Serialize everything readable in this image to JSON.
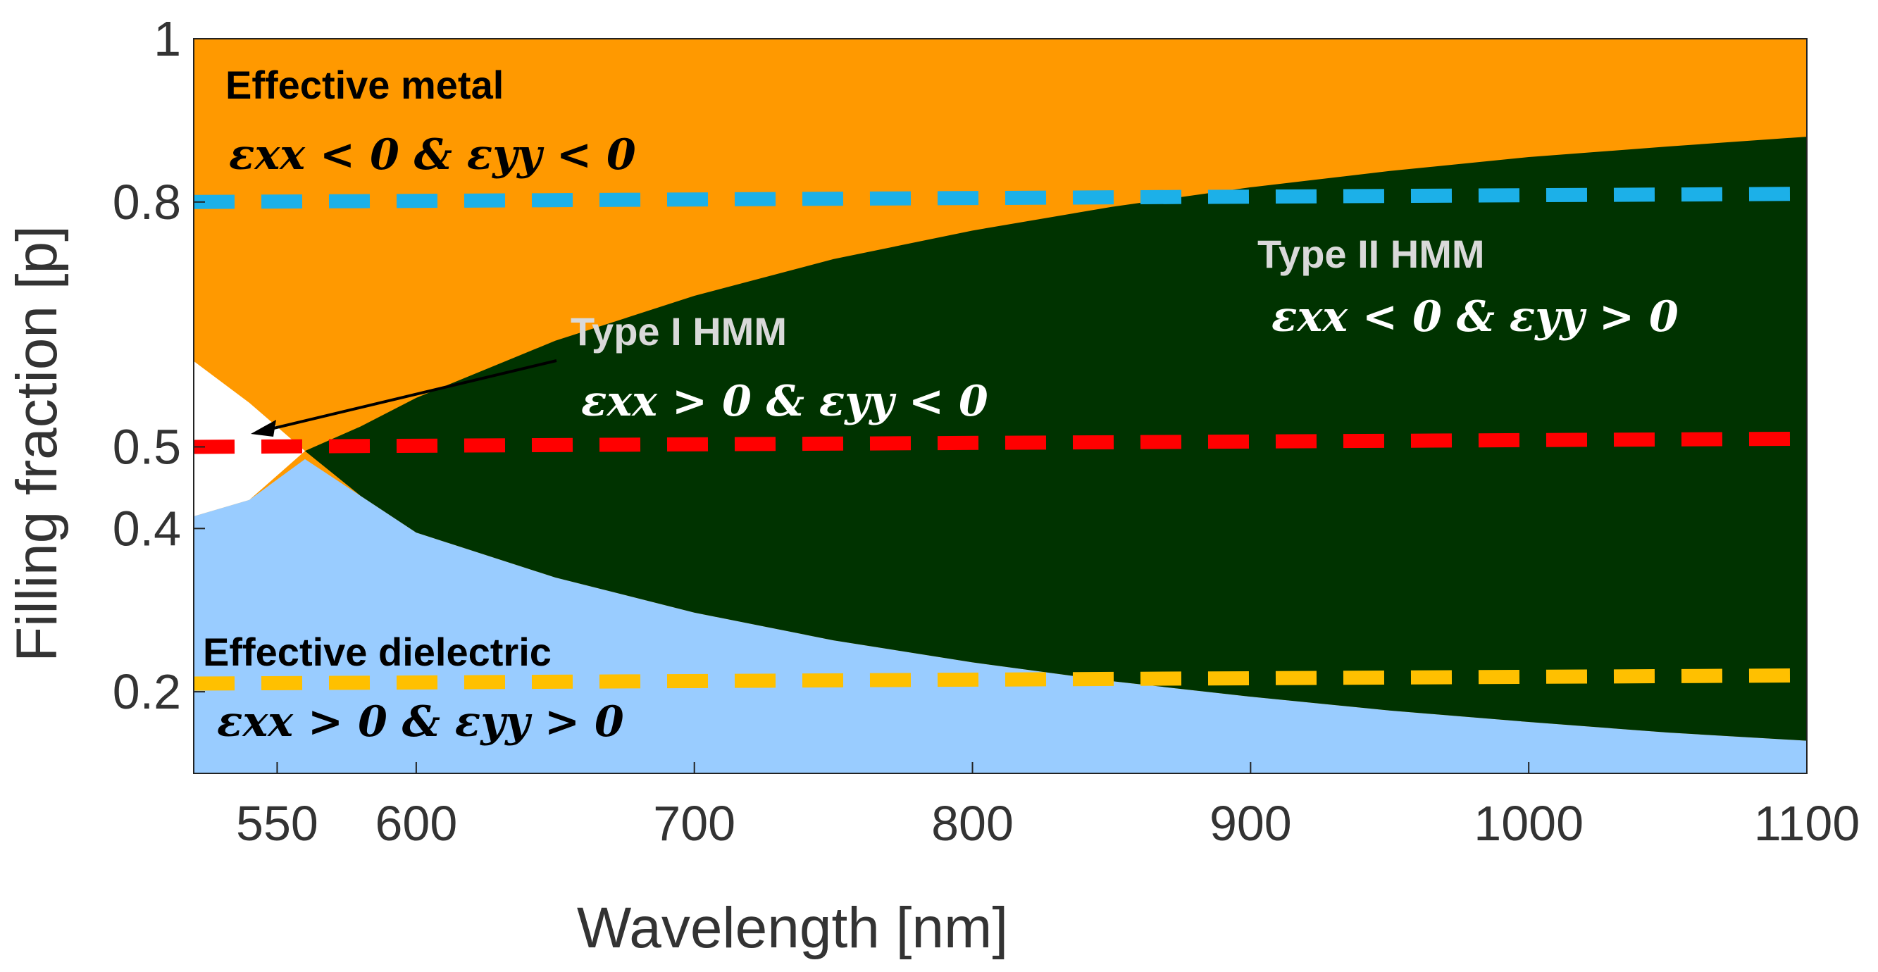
{
  "chart_data": {
    "type": "area",
    "title": "",
    "xlabel": "Wavelength [nm]",
    "ylabel": "Filling fraction [p]",
    "xlim": [
      520,
      1100
    ],
    "ylim": [
      0.1,
      1.0
    ],
    "x_ticks": [
      550,
      600,
      700,
      800,
      900,
      1000,
      1100
    ],
    "x_tick_labels": [
      "550",
      "600",
      "700",
      "800",
      "900",
      "1000",
      "1100"
    ],
    "y_ticks": [
      0.2,
      0.4,
      0.5,
      0.8,
      1.0
    ],
    "y_tick_labels": [
      "0.2",
      "0.4",
      "0.5",
      "0.8",
      "1"
    ],
    "boundaries": {
      "x": [
        520,
        540,
        560,
        580,
        600,
        650,
        700,
        750,
        800,
        850,
        900,
        950,
        1000,
        1050,
        1100
      ],
      "epsilon_xx_zero": [
        0.605,
        0.554,
        0.505,
        0.525,
        0.56,
        0.63,
        0.685,
        0.73,
        0.765,
        0.794,
        0.818,
        0.838,
        0.855,
        0.868,
        0.88
      ],
      "epsilon_yy_zero": [
        0.415,
        0.435,
        0.485,
        0.44,
        0.395,
        0.34,
        0.297,
        0.263,
        0.236,
        0.213,
        0.194,
        0.177,
        0.163,
        0.15,
        0.14
      ]
    },
    "regions": [
      {
        "name": "Effective metal",
        "condition": "εxx < 0 & εyy < 0",
        "color": "#FF9900"
      },
      {
        "name": "Type I HMM",
        "condition": "εxx > 0 & εyy < 0",
        "color": "#FFFFFF"
      },
      {
        "name": "Type II HMM",
        "condition": "εxx < 0 & εyy > 0",
        "color": "#003300"
      },
      {
        "name": "Effective dielectric",
        "condition": "εxx > 0 & εyy > 0",
        "color": "#99CCFF"
      }
    ],
    "reference_lines": [
      {
        "name": "p = 0.8",
        "color": "#1CB0E8",
        "x": [
          520,
          1100
        ],
        "y": [
          0.8,
          0.81
        ]
      },
      {
        "name": "p = 0.5",
        "color": "#FF0000",
        "x": [
          520,
          1100
        ],
        "y": [
          0.5,
          0.51
        ]
      },
      {
        "name": "p = 0.2",
        "color": "#FFC000",
        "x": [
          520,
          1100
        ],
        "y": [
          0.21,
          0.22
        ]
      }
    ],
    "annotations": [
      {
        "id": "metal",
        "title": "Effective metal",
        "condition": "εxx < 0 & εyy < 0",
        "title_color": "#000000",
        "condition_color": "#000000"
      },
      {
        "id": "type1",
        "title": "Type I HMM",
        "condition": "εxx > 0 & εyy < 0",
        "title_color": "#D9D9D9",
        "condition_color": "#FFFFFF"
      },
      {
        "id": "type2",
        "title": "Type II HMM",
        "condition": "εxx < 0 & εyy > 0",
        "title_color": "#D9D9D9",
        "condition_color": "#FFFFFF"
      },
      {
        "id": "dielectric",
        "title": "Effective dielectric",
        "condition": "εxx > 0 & εyy > 0",
        "title_color": "#000000",
        "condition_color": "#000000"
      }
    ]
  }
}
